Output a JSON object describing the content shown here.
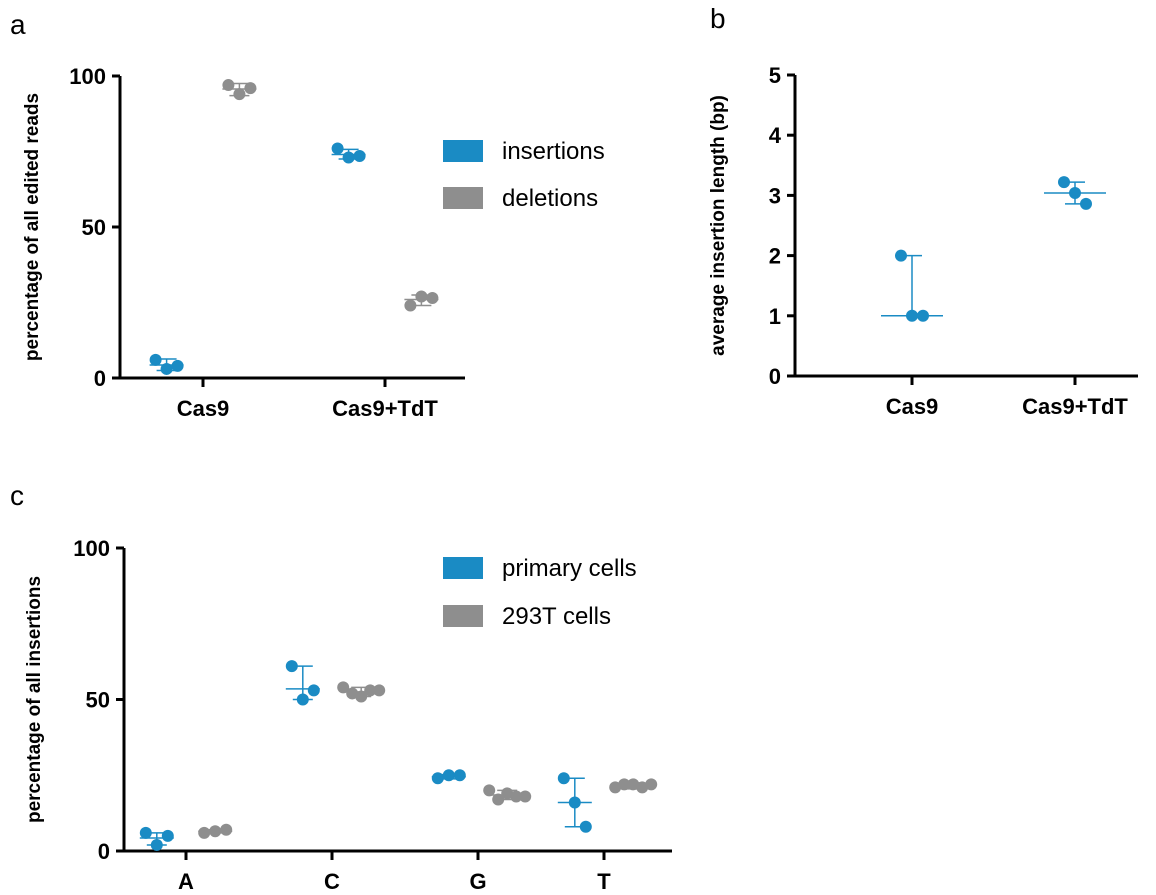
{
  "colors": {
    "blue": "#1a8bc4",
    "gray": "#8e8e8e"
  },
  "chart_data": [
    {
      "panel": "a",
      "type": "scatter",
      "ylabel": "percentage of all edited reads",
      "ylim": [
        0,
        100
      ],
      "yticks": [
        0,
        50,
        100
      ],
      "categories": [
        "Cas9",
        "Cas9+TdT"
      ],
      "legend": {
        "position": "right",
        "entries": [
          "insertions",
          "deletions"
        ]
      },
      "series": [
        {
          "name": "insertions",
          "color": "blue",
          "groups": [
            {
              "category": "Cas9",
              "offset": -0.2,
              "points": [
                6,
                3,
                4
              ],
              "mean": 4.3,
              "low": 2.5,
              "high": 6.3
            },
            {
              "category": "Cas9+TdT",
              "offset": -0.2,
              "points": [
                76,
                73,
                73.5
              ],
              "mean": 74,
              "low": 72.5,
              "high": 75.7
            }
          ]
        },
        {
          "name": "deletions",
          "color": "gray",
          "groups": [
            {
              "category": "Cas9",
              "offset": 0.2,
              "points": [
                97,
                94,
                96
              ],
              "mean": 95.7,
              "low": 93.5,
              "high": 97.5
            },
            {
              "category": "Cas9+TdT",
              "offset": 0.2,
              "points": [
                24,
                27,
                26.5
              ],
              "mean": 26,
              "low": 24,
              "high": 27.5
            }
          ]
        }
      ]
    },
    {
      "panel": "b",
      "type": "scatter",
      "ylabel": "average insertion length (bp)",
      "ylim": [
        0,
        5
      ],
      "yticks": [
        0,
        1,
        2,
        3,
        4,
        5
      ],
      "categories": [
        "Cas9",
        "Cas9+TdT"
      ],
      "series": [
        {
          "name": "",
          "color": "blue",
          "groups": [
            {
              "category": "Cas9",
              "offset": 0,
              "points": [
                2,
                1,
                1
              ],
              "mean": 1,
              "low": 1,
              "high": 2
            },
            {
              "category": "Cas9+TdT",
              "offset": 0,
              "points": [
                3.22,
                3.04,
                2.86
              ],
              "mean": 3.04,
              "low": 2.86,
              "high": 3.22
            }
          ]
        }
      ]
    },
    {
      "panel": "c",
      "type": "scatter",
      "ylabel": "percentage of all insertions",
      "ylim": [
        0,
        100
      ],
      "yticks": [
        0,
        50,
        100
      ],
      "categories": [
        "A",
        "C",
        "G",
        "T"
      ],
      "legend": {
        "position": "top-right",
        "entries": [
          "primary cells",
          "293T cells"
        ]
      },
      "series": [
        {
          "name": "primary cells",
          "color": "blue",
          "groups": [
            {
              "category": "A",
              "offset": -0.2,
              "points": [
                6,
                2,
                5
              ],
              "mean": 4.3,
              "low": 2,
              "high": 6
            },
            {
              "category": "C",
              "offset": -0.2,
              "points": [
                61,
                50,
                53
              ],
              "mean": 53.5,
              "low": 50,
              "high": 61
            },
            {
              "category": "G",
              "offset": -0.2,
              "points": [
                24,
                25,
                25
              ],
              "mean": 24.5,
              "low": 23.8,
              "high": 25.2
            },
            {
              "category": "T",
              "offset": -0.2,
              "points": [
                24,
                16,
                8
              ],
              "mean": 16,
              "low": 8,
              "high": 24
            }
          ]
        },
        {
          "name": "293T cells",
          "color": "gray",
          "groups": [
            {
              "category": "A",
              "offset": 0.2,
              "points": [
                6,
                6.5,
                7
              ],
              "mean": 6.5,
              "low": 6,
              "high": 7
            },
            {
              "category": "C",
              "offset": 0.2,
              "points": [
                54,
                52,
                51,
                53,
                53
              ],
              "mean": 52.5,
              "low": 51,
              "high": 54
            },
            {
              "category": "G",
              "offset": 0.2,
              "points": [
                20,
                17,
                19,
                18,
                18
              ],
              "mean": 18.5,
              "low": 17,
              "high": 20
            },
            {
              "category": "T",
              "offset": 0.2,
              "points": [
                21,
                22,
                22,
                21,
                22
              ],
              "mean": 21.5,
              "low": 20.5,
              "high": 22.5
            }
          ]
        }
      ]
    }
  ]
}
